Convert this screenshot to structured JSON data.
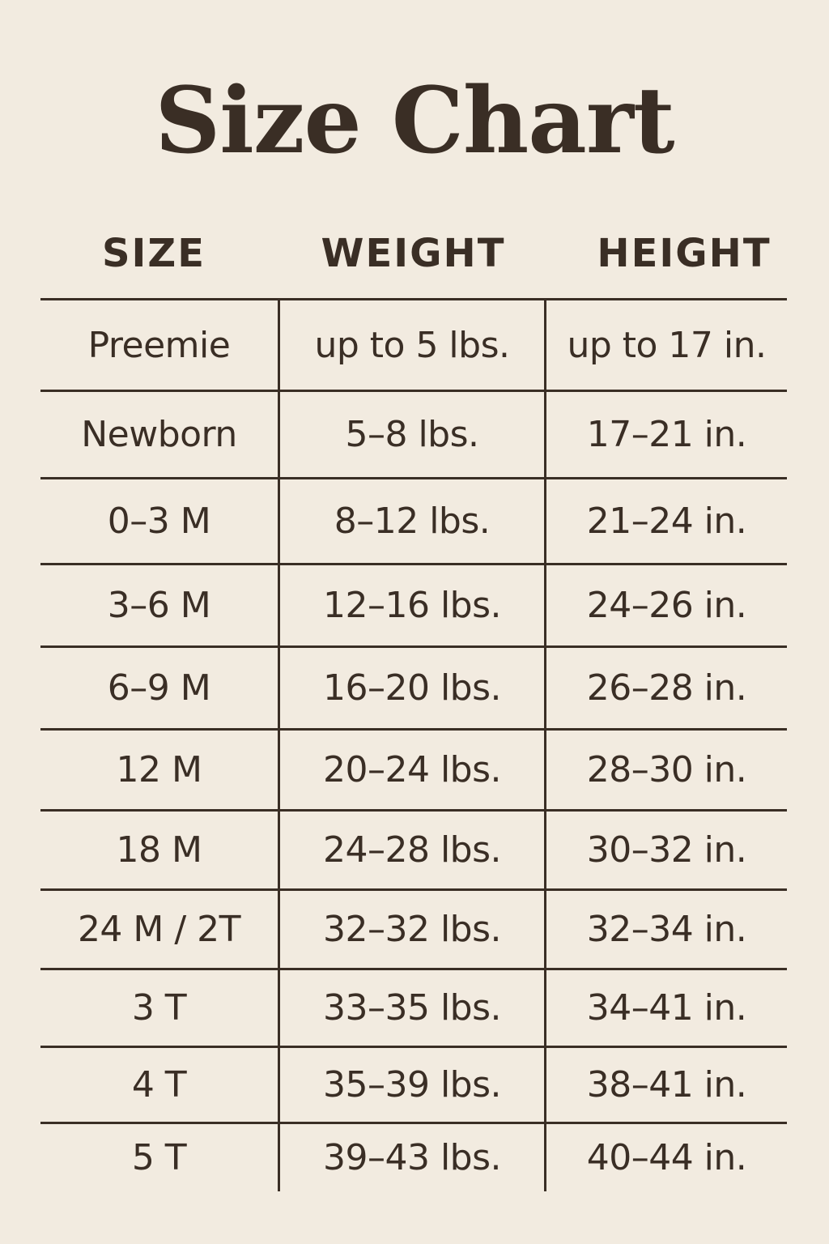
{
  "title": "Size Chart",
  "headers": [
    "SIZE",
    "WEIGHT",
    "HEIGHT"
  ],
  "rows": [
    [
      "Preemie",
      "up to 5 lbs.",
      "up to 17 in."
    ],
    [
      "Newborn",
      "5–8 lbs.",
      "17–21 in."
    ],
    [
      "0–3 M",
      "8–12 lbs.",
      "21–24 in."
    ],
    [
      "3–6 M",
      "12–16 lbs.",
      "24–26 in."
    ],
    [
      "6–9 M",
      "16–20 lbs.",
      "26–28 in."
    ],
    [
      "12 M",
      "20–24 lbs.",
      "28–30 in."
    ],
    [
      "18 M",
      "24–28 lbs.",
      "30–32 in."
    ],
    [
      "24 M / 2T",
      "32–32 lbs.",
      "32–34 in."
    ],
    [
      "3 T",
      "33–35 lbs.",
      "34–41 in."
    ],
    [
      "4 T",
      "35–39 lbs.",
      "38–41 in."
    ],
    [
      "5 T",
      "39–43 lbs.",
      "40–44 in."
    ]
  ],
  "colors": {
    "background": "#f2ebe0",
    "text": "#3a2e25"
  }
}
